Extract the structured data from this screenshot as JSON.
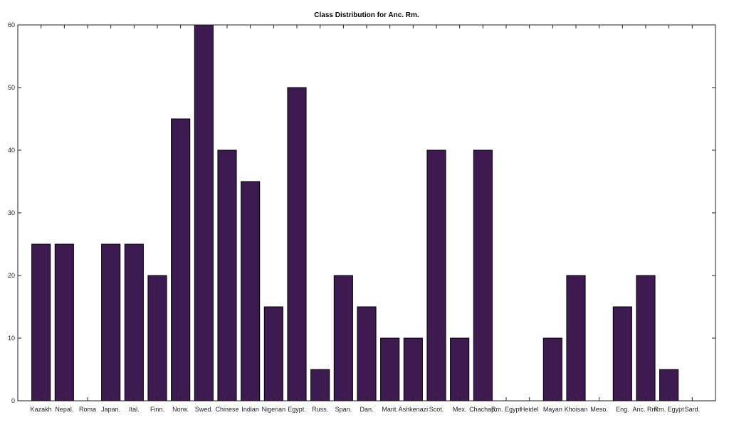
{
  "chart_data": {
    "type": "bar",
    "title": "Class Distribution for Anc. Rm.",
    "xlabel": "",
    "ylabel": "",
    "ylim": [
      0,
      60
    ],
    "yticks": [
      0,
      10,
      20,
      30,
      40,
      50,
      60
    ],
    "grid": false,
    "bar_color": "#3d1a50",
    "categories": [
      "Kazakh",
      "Nepal.",
      "Roma",
      "Japan.",
      "Ital.",
      "Finn.",
      "Norw.",
      "Swed.",
      "Chinese",
      "Indian",
      "Nigerian",
      "Egypt.",
      "Russ.",
      "Span.",
      "Dan.",
      "Marit.",
      "Ashkenazi",
      "Scot.",
      "Mex.",
      "Chachap.",
      "Rm. Egypt",
      "Heidel",
      "Mayan",
      "Khoisan",
      "Meso.",
      "Eng.",
      "Anc. Rm.",
      "Rm. Egypt",
      "Sard."
    ],
    "values": [
      25,
      25,
      0,
      25,
      25,
      20,
      45,
      60,
      40,
      35,
      15,
      50,
      5,
      20,
      15,
      10,
      10,
      40,
      10,
      40,
      0,
      0,
      10,
      20,
      0,
      15,
      20,
      5,
      0
    ]
  }
}
